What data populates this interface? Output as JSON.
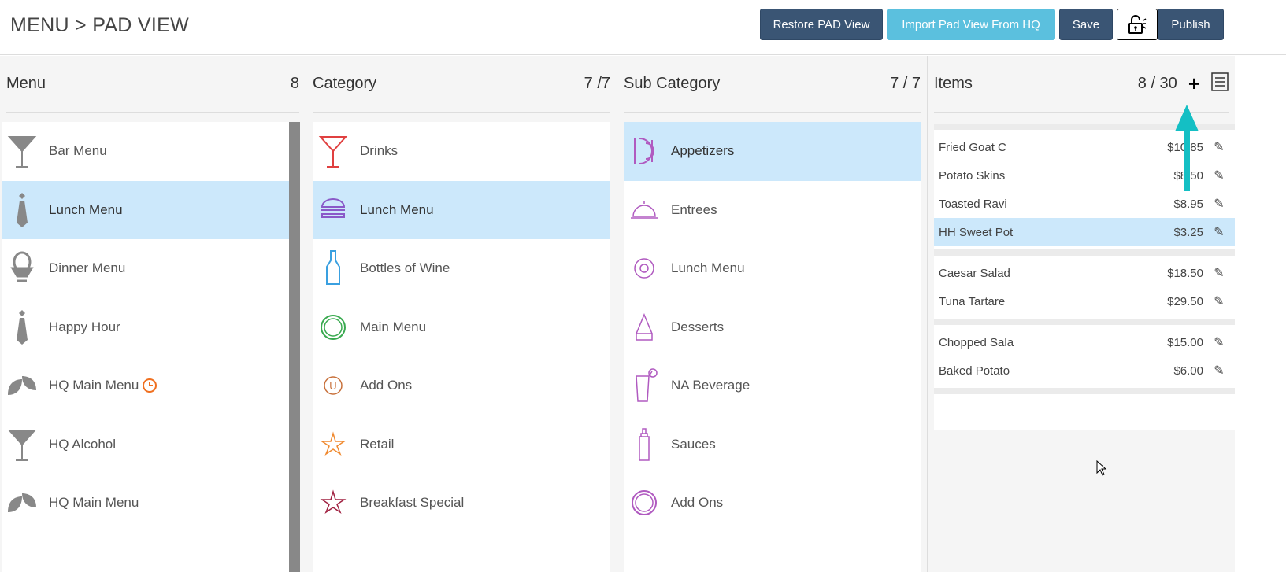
{
  "breadcrumb": "MENU > PAD VIEW",
  "toolbar": {
    "restore": "Restore PAD View",
    "import": "Import Pad View From HQ",
    "save": "Save",
    "publish": "Publish",
    "lock_icon": "unlock-icon"
  },
  "menu": {
    "title": "Menu",
    "count": "8",
    "items": [
      {
        "label": "Bar Menu",
        "icon": "cocktail-icon"
      },
      {
        "label": "Lunch Menu",
        "icon": "tie-icon",
        "selected": true
      },
      {
        "label": "Dinner Menu",
        "icon": "egg-cup-icon"
      },
      {
        "label": "Happy Hour",
        "icon": "tie-icon"
      },
      {
        "label": "HQ Main Menu",
        "icon": "leaf-icon",
        "badge": "clock-icon"
      },
      {
        "label": "HQ Alcohol",
        "icon": "cocktail-icon"
      },
      {
        "label": "HQ Main Menu",
        "icon": "leaf-icon"
      }
    ]
  },
  "category": {
    "title": "Category",
    "count": "7 /7",
    "items": [
      {
        "label": "Drinks",
        "icon": "cocktail-icon",
        "color": "#e04040"
      },
      {
        "label": "Lunch Menu",
        "icon": "burger-icon",
        "color": "#8a5ac8",
        "selected": true
      },
      {
        "label": "Bottles of Wine",
        "icon": "bottle-icon",
        "color": "#3aa0e0"
      },
      {
        "label": "Main Menu",
        "icon": "plate-icon",
        "color": "#3aaa50"
      },
      {
        "label": "Add Ons",
        "icon": "circle-u-icon",
        "color": "#c8703a"
      },
      {
        "label": "Retail",
        "icon": "star-icon",
        "color": "#f08a30"
      },
      {
        "label": "Breakfast Special",
        "icon": "star-icon",
        "color": "#a02040"
      }
    ]
  },
  "subcategory": {
    "title": "Sub Category",
    "count": "7 / 7",
    "items": [
      {
        "label": "Appetizers",
        "icon": "plate-cutlery-icon",
        "selected": true
      },
      {
        "label": "Entrees",
        "icon": "cloche-icon"
      },
      {
        "label": "Lunch Menu",
        "icon": "circle-icon"
      },
      {
        "label": "Desserts",
        "icon": "cake-icon"
      },
      {
        "label": "NA Beverage",
        "icon": "drink-icon"
      },
      {
        "label": "Sauces",
        "icon": "sauce-bottle-icon"
      },
      {
        "label": "Add Ons",
        "icon": "plate-icon"
      }
    ],
    "color": "#b05ac0"
  },
  "items": {
    "title": "Items",
    "count": "8 / 30",
    "groups": [
      [
        {
          "name": "Fried Goat C",
          "price": "$10.85"
        },
        {
          "name": "Potato Skins",
          "price": "$8.50"
        },
        {
          "name": "Toasted Ravi",
          "price": "$8.95"
        },
        {
          "name": "HH Sweet Pot",
          "price": "$3.25",
          "selected": true
        }
      ],
      [
        {
          "name": "Caesar Salad",
          "price": "$18.50"
        },
        {
          "name": "Tuna Tartare",
          "price": "$29.50"
        }
      ],
      [
        {
          "name": "Chopped Sala",
          "price": "$15.00"
        },
        {
          "name": "Baked Potato",
          "price": "$6.00"
        }
      ]
    ]
  },
  "colors": {
    "primary": "#3a5574",
    "accent": "#5bc0de",
    "selected": "#cce8fb",
    "arrow": "#14bfc4",
    "clock": "#f07020"
  }
}
